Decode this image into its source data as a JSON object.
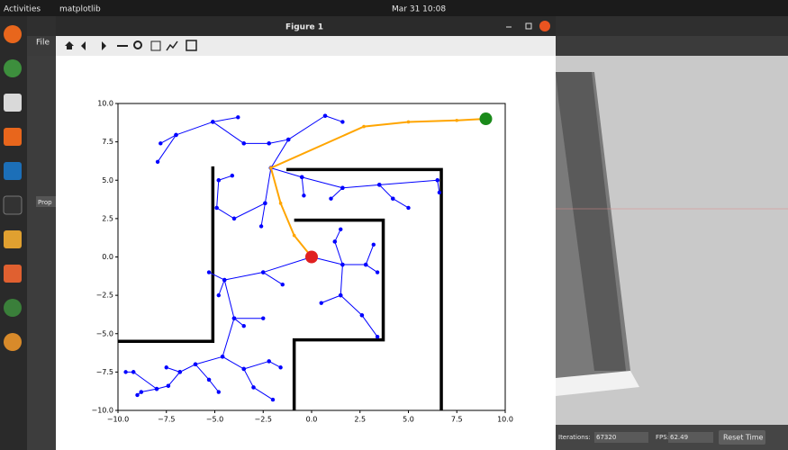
{
  "topbar": {
    "activities": "Activities",
    "app": "matplotlib",
    "clock": "Mar 31  10:08"
  },
  "window": {
    "title": "Figure 1"
  },
  "gazebo": {
    "menu": "File",
    "panel": "Prop",
    "iterations_label": "Iterations:",
    "iterations": "67320",
    "fps_label": "FPS:",
    "fps": "62.49",
    "reset": "Reset Time"
  },
  "chart_data": {
    "type": "tree",
    "xlim": [
      -10,
      10
    ],
    "ylim": [
      -10,
      10
    ],
    "xticks": [
      {
        "value": -10,
        "label": "−10.0"
      },
      {
        "value": -7.5,
        "label": "−7.5"
      },
      {
        "value": -5,
        "label": "−5.0"
      },
      {
        "value": -2.5,
        "label": "−2.5"
      },
      {
        "value": 0,
        "label": "0.0"
      },
      {
        "value": 2.5,
        "label": "2.5"
      },
      {
        "value": 5,
        "label": "5.0"
      },
      {
        "value": 7.5,
        "label": "7.5"
      },
      {
        "value": 10,
        "label": "10.0"
      }
    ],
    "yticks": [
      {
        "value": -10,
        "label": "−10.0"
      },
      {
        "value": -7.5,
        "label": "−7.5"
      },
      {
        "value": -5,
        "label": "−5.0"
      },
      {
        "value": -2.5,
        "label": "−2.5"
      },
      {
        "value": 0,
        "label": "0.0"
      },
      {
        "value": 2.5,
        "label": "2.5"
      },
      {
        "value": 5,
        "label": "5.0"
      },
      {
        "value": 7.5,
        "label": "7.5"
      },
      {
        "value": 10,
        "label": "10.0"
      }
    ],
    "tree_color": "#0000ff",
    "path_color": "#ffa500",
    "wall_color": "#000000",
    "start_color": "#e02020",
    "goal_color": "#1a8a1a",
    "walls": [
      {
        "x": [
          -10,
          -5.1,
          -5.1
        ],
        "y": [
          -5.5,
          -5.5,
          5.9
        ]
      },
      {
        "x": [
          -1.3,
          6.7,
          6.7
        ],
        "y": [
          5.7,
          5.7,
          -10
        ]
      },
      {
        "x": [
          -0.9,
          3.7,
          3.7,
          -0.9,
          -0.9
        ],
        "y": [
          2.4,
          2.4,
          -5.4,
          -5.4,
          -10
        ]
      }
    ],
    "tree": [
      {
        "x": [
          -7.95,
          -7
        ],
        "y": [
          6.2,
          7.95
        ]
      },
      {
        "x": [
          -7,
          -5.1
        ],
        "y": [
          7.95,
          8.8
        ]
      },
      {
        "x": [
          -5.1,
          -3.8
        ],
        "y": [
          8.8,
          9.1
        ]
      },
      {
        "x": [
          -5.1,
          -3.5
        ],
        "y": [
          8.8,
          7.4
        ]
      },
      {
        "x": [
          -3.5,
          -2.2
        ],
        "y": [
          7.4,
          7.4
        ]
      },
      {
        "x": [
          -2.2,
          -1.2
        ],
        "y": [
          7.4,
          7.65
        ]
      },
      {
        "x": [
          -1.2,
          0.7
        ],
        "y": [
          7.65,
          9.2
        ]
      },
      {
        "x": [
          0.7,
          1.6
        ],
        "y": [
          9.2,
          8.8
        ]
      },
      {
        "x": [
          -7,
          -7.8
        ],
        "y": [
          7.95,
          7.4
        ]
      },
      {
        "x": [
          -2.1,
          -1.2
        ],
        "y": [
          5.8,
          7.65
        ]
      },
      {
        "x": [
          -2.1,
          -2.4
        ],
        "y": [
          5.8,
          3.5
        ]
      },
      {
        "x": [
          -2.4,
          -4
        ],
        "y": [
          3.5,
          2.5
        ]
      },
      {
        "x": [
          -4,
          -4.9
        ],
        "y": [
          2.5,
          3.2
        ]
      },
      {
        "x": [
          -4.9,
          -4.8
        ],
        "y": [
          3.2,
          5
        ]
      },
      {
        "x": [
          -4.8,
          -4.1
        ],
        "y": [
          5,
          5.3
        ]
      },
      {
        "x": [
          -2.4,
          -2.6
        ],
        "y": [
          3.5,
          2
        ]
      },
      {
        "x": [
          -2.1,
          -0.5
        ],
        "y": [
          5.8,
          5.2
        ]
      },
      {
        "x": [
          -0.5,
          1.6
        ],
        "y": [
          5.2,
          4.5
        ]
      },
      {
        "x": [
          1.6,
          3.5
        ],
        "y": [
          4.5,
          4.7
        ]
      },
      {
        "x": [
          3.5,
          6.5
        ],
        "y": [
          4.7,
          5
        ]
      },
      {
        "x": [
          6.5,
          6.6
        ],
        "y": [
          5,
          4.2
        ]
      },
      {
        "x": [
          1.6,
          1
        ],
        "y": [
          4.5,
          3.8
        ]
      },
      {
        "x": [
          3.5,
          4.2
        ],
        "y": [
          4.7,
          3.8
        ]
      },
      {
        "x": [
          -0.5,
          -0.4
        ],
        "y": [
          5.2,
          4
        ]
      },
      {
        "x": [
          4.2,
          5
        ],
        "y": [
          3.8,
          3.2
        ]
      },
      {
        "x": [
          0,
          -2.5
        ],
        "y": [
          0,
          -1
        ]
      },
      {
        "x": [
          -2.5,
          -4.5
        ],
        "y": [
          -1,
          -1.5
        ]
      },
      {
        "x": [
          -4.5,
          -5.3
        ],
        "y": [
          -1.5,
          -1
        ]
      },
      {
        "x": [
          -4.5,
          -4.8
        ],
        "y": [
          -1.5,
          -2.5
        ]
      },
      {
        "x": [
          -2.5,
          -1.5
        ],
        "y": [
          -1,
          -1.8
        ]
      },
      {
        "x": [
          0,
          1.6
        ],
        "y": [
          0,
          -0.5
        ]
      },
      {
        "x": [
          1.6,
          2.8
        ],
        "y": [
          -0.5,
          -0.5
        ]
      },
      {
        "x": [
          2.8,
          3.4
        ],
        "y": [
          -0.5,
          -1
        ]
      },
      {
        "x": [
          1.6,
          1.5
        ],
        "y": [
          -0.5,
          -2.5
        ]
      },
      {
        "x": [
          1.5,
          0.5
        ],
        "y": [
          -2.5,
          -3
        ]
      },
      {
        "x": [
          1.5,
          2.6
        ],
        "y": [
          -2.5,
          -3.8
        ]
      },
      {
        "x": [
          2.6,
          3.4
        ],
        "y": [
          -3.8,
          -5.2
        ]
      },
      {
        "x": [
          1.6,
          1.2
        ],
        "y": [
          -0.5,
          1
        ]
      },
      {
        "x": [
          1.2,
          1.5
        ],
        "y": [
          1,
          1.8
        ]
      },
      {
        "x": [
          2.8,
          3.2
        ],
        "y": [
          -0.5,
          0.8
        ]
      },
      {
        "x": [
          -4.5,
          -4
        ],
        "y": [
          -1.5,
          -4
        ]
      },
      {
        "x": [
          -4,
          -3.5
        ],
        "y": [
          -4,
          -4.5
        ]
      },
      {
        "x": [
          -4,
          -2.5
        ],
        "y": [
          -4,
          -4
        ]
      },
      {
        "x": [
          -4,
          -4.6
        ],
        "y": [
          -4,
          -6.5
        ]
      },
      {
        "x": [
          -4.6,
          -6
        ],
        "y": [
          -6.5,
          -7
        ]
      },
      {
        "x": [
          -6,
          -6.8
        ],
        "y": [
          -7,
          -7.5
        ]
      },
      {
        "x": [
          -6.8,
          -7.5
        ],
        "y": [
          -7.5,
          -7.2
        ]
      },
      {
        "x": [
          -6.8,
          -7.4
        ],
        "y": [
          -7.5,
          -8.4
        ]
      },
      {
        "x": [
          -7.4,
          -8
        ],
        "y": [
          -8.4,
          -8.6
        ]
      },
      {
        "x": [
          -6,
          -5.3
        ],
        "y": [
          -7,
          -8
        ]
      },
      {
        "x": [
          -5.3,
          -4.8
        ],
        "y": [
          -8,
          -8.8
        ]
      },
      {
        "x": [
          -4.6,
          -3.5
        ],
        "y": [
          -6.5,
          -7.3
        ]
      },
      {
        "x": [
          -3.5,
          -3
        ],
        "y": [
          -7.3,
          -8.5
        ]
      },
      {
        "x": [
          -3,
          -2
        ],
        "y": [
          -8.5,
          -9.3
        ]
      },
      {
        "x": [
          -3.5,
          -2.2
        ],
        "y": [
          -7.3,
          -6.8
        ]
      },
      {
        "x": [
          -2.2,
          -1.6
        ],
        "y": [
          -6.8,
          -7.2
        ]
      },
      {
        "x": [
          -8,
          -9.2
        ],
        "y": [
          -8.6,
          -7.5
        ]
      },
      {
        "x": [
          -9.2,
          -9.6
        ],
        "y": [
          -7.5,
          -7.5
        ]
      },
      {
        "x": [
          -8,
          -8.8
        ],
        "y": [
          -8.6,
          -8.8
        ]
      },
      {
        "x": [
          -8.8,
          -9
        ],
        "y": [
          -8.8,
          -9
        ]
      }
    ],
    "path": {
      "x": [
        9,
        7.5,
        5,
        2.7,
        -2.1,
        -1.6,
        -0.9,
        0
      ],
      "y": [
        9,
        8.9,
        8.8,
        8.5,
        5.8,
        3.5,
        1.4,
        0
      ]
    },
    "start": {
      "x": 0,
      "y": 0
    },
    "goal": {
      "x": 9,
      "y": 9
    }
  }
}
